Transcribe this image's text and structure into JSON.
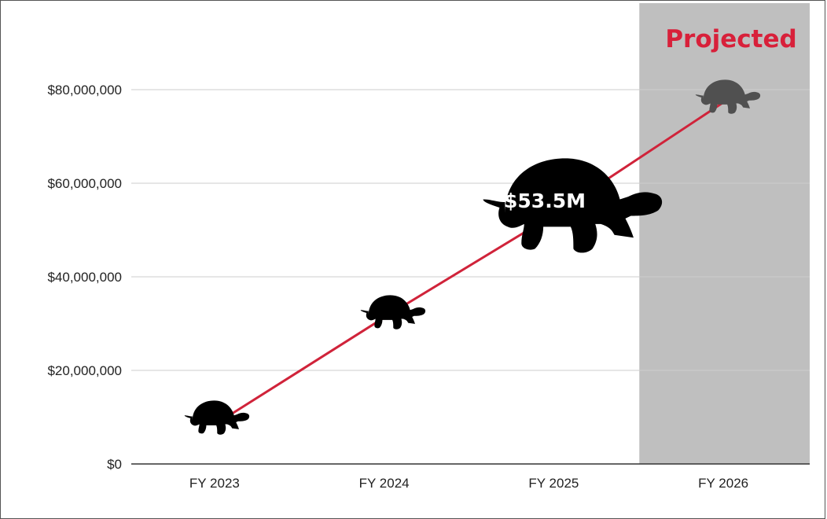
{
  "chart_data": {
    "type": "line",
    "categories": [
      "FY 2023",
      "FY 2024",
      "FY 2025",
      "FY 2026"
    ],
    "values": [
      10000000,
      31500000,
      53500000,
      77500000
    ],
    "ylim": [
      0,
      80000000
    ],
    "yticks": [
      0,
      20000000,
      40000000,
      60000000,
      80000000
    ],
    "ytick_labels": [
      "$0",
      "$20,000,000",
      "$40,000,000",
      "$60,000,000",
      "$80,000,000"
    ],
    "grid": true,
    "projected_label": "Projected",
    "projected_category": "FY 2026",
    "highlight_label": "$53.5M",
    "highlight_category": "FY 2025",
    "marker_icon": "tortoise-icon",
    "colors": {
      "line": "#d0233a",
      "projected_text": "#d8203a",
      "projected_band": "#bfbfbf",
      "marker": "#000000",
      "marker_projected": "#505050",
      "grid": "#cccccc"
    }
  }
}
